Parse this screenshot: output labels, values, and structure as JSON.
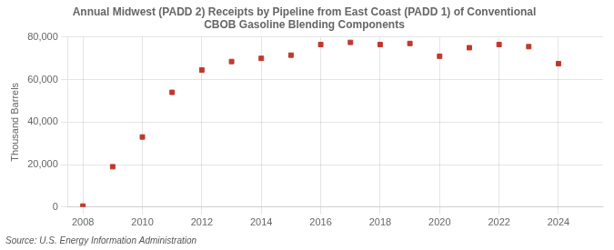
{
  "chart_data": {
    "type": "scatter",
    "title": [
      "Annual Midwest (PADD 2) Receipts by Pipeline from East Coast (PADD 1) of Conventional",
      "CBOB Gasoline Blending Components"
    ],
    "ylabel": "Thousand Barrels",
    "annotations": [
      "Source: U.S. Energy Information Administration"
    ],
    "x": [
      2008,
      2009,
      2010,
      2011,
      2012,
      2013,
      2014,
      2015,
      2016,
      2017,
      2018,
      2019,
      2020,
      2021,
      2022,
      2023,
      2024
    ],
    "values": [
      500,
      19000,
      33000,
      54000,
      64500,
      68500,
      70000,
      71500,
      76500,
      77500,
      76500,
      77000,
      71000,
      75000,
      76500,
      75500,
      67500
    ],
    "color": "#c0392b",
    "marker": "square",
    "xlim": [
      2007.5,
      2025.5
    ],
    "xticks": [
      2008,
      2010,
      2012,
      2014,
      2016,
      2018,
      2020,
      2022,
      2024
    ],
    "ylim": [
      0,
      80000
    ],
    "yticks": [
      0,
      {
        "value": 20000,
        "label": "20,000"
      },
      {
        "value": 40000,
        "label": "40,000"
      },
      {
        "value": 60000,
        "label": "60,000"
      },
      {
        "value": 80000,
        "label": "80,000"
      }
    ],
    "grid": true
  }
}
